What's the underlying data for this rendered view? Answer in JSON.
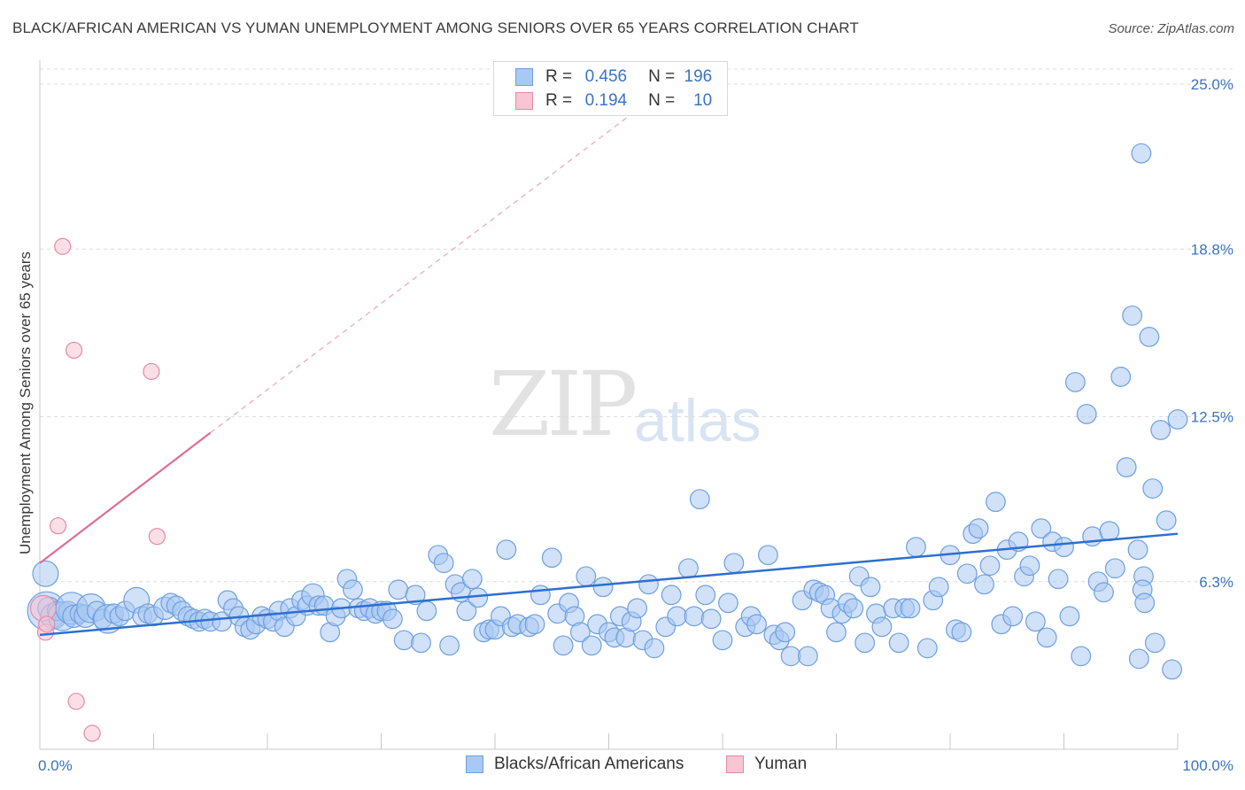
{
  "title": "BLACK/AFRICAN AMERICAN VS YUMAN UNEMPLOYMENT AMONG SENIORS OVER 65 YEARS CORRELATION CHART",
  "source": "Source: ZipAtlas.com",
  "watermark": {
    "zip": "ZIP",
    "atlas": "atlas"
  },
  "legend": {
    "r_label": "R =",
    "n_label": "N =",
    "rows": [
      {
        "r": "0.456",
        "n": "196",
        "color": "#a9c9f2",
        "border": "#6e9fe0"
      },
      {
        "r": "0.194",
        "n": "10",
        "color": "#f7c5d3",
        "border": "#e58aa6"
      }
    ]
  },
  "bottom_legend": [
    {
      "label": "Blacks/African Americans",
      "color": "#a9c9f2",
      "border": "#6e9fe0"
    },
    {
      "label": "Yuman",
      "color": "#f7c5d3",
      "border": "#e58aa6"
    }
  ],
  "chart_data": {
    "type": "scatter",
    "title": "BLACK/AFRICAN AMERICAN VS YUMAN UNEMPLOYMENT AMONG SENIORS OVER 65 YEARS CORRELATION CHART",
    "xlabel": "",
    "ylabel": "Unemployment Among Seniors over 65 years",
    "xlim": [
      0,
      100
    ],
    "ylim": [
      0,
      25.9
    ],
    "x_tick_labels": [
      "0.0%",
      "100.0%"
    ],
    "y_ticks": [
      6.3,
      12.5,
      18.8,
      25.0
    ],
    "y_tick_labels": [
      "6.3%",
      "12.5%",
      "18.8%",
      "25.0%"
    ],
    "grid": "horizontal-dashed",
    "legend_position": "top-center",
    "colors": {
      "blue": "#6e9fe0",
      "blue_fill": "#a9c9f2",
      "blue_line": "#2c6fd1",
      "pink": "#e58aa6",
      "pink_fill": "#f7c5d3",
      "pink_line": "#e06c92"
    },
    "series": [
      {
        "name": "Blacks/African Americans",
        "color": "#6e9fe0",
        "trend": {
          "x": [
            0,
            100
          ],
          "y": [
            4.3,
            8.1
          ]
        },
        "points": [
          [
            0.5,
            6.6,
            1.6
          ],
          [
            0.6,
            5.2,
            2.4
          ],
          [
            0.8,
            5.3,
            1.4
          ],
          [
            1.2,
            5.0,
            1.6
          ],
          [
            1.5,
            5.2,
            1.2
          ],
          [
            2,
            5.0,
            1.8
          ],
          [
            2.5,
            5.2,
            1.2
          ],
          [
            2.8,
            5.3,
            2.0
          ],
          [
            3,
            5.0,
            1.4
          ],
          [
            3.5,
            5.1,
            1.2
          ],
          [
            4,
            5.0,
            1.4
          ],
          [
            4.5,
            5.3,
            1.8
          ],
          [
            5,
            5.2,
            1.2
          ],
          [
            5.5,
            4.9,
            1.2
          ],
          [
            6,
            4.9,
            1.8
          ],
          [
            6.5,
            5.1,
            1.2
          ],
          [
            7,
            5.0,
            1.2
          ],
          [
            7.5,
            5.2,
            1.2
          ],
          [
            8.5,
            5.6,
            1.6
          ],
          [
            9,
            5.0,
            1.2
          ],
          [
            9.5,
            5.1,
            1.2
          ],
          [
            10,
            5.0,
            1.2
          ],
          [
            11,
            5.3,
            1.4
          ],
          [
            11.5,
            5.5,
            1.2
          ],
          [
            12,
            5.4,
            1.2
          ],
          [
            12.5,
            5.2,
            1.2
          ],
          [
            13,
            5.0,
            1.2
          ],
          [
            13.5,
            4.9,
            1.2
          ],
          [
            14,
            4.8,
            1.2
          ],
          [
            14.5,
            4.9,
            1.2
          ],
          [
            15,
            4.8,
            1.2
          ],
          [
            16,
            4.8,
            1.2
          ],
          [
            16.5,
            5.6,
            1.2
          ],
          [
            17,
            5.3,
            1.2
          ],
          [
            17.5,
            5.0,
            1.2
          ],
          [
            18,
            4.6,
            1.2
          ],
          [
            18.5,
            4.5,
            1.2
          ],
          [
            19,
            4.7,
            1.2
          ],
          [
            19.5,
            5.0,
            1.2
          ],
          [
            20,
            4.9,
            1.2
          ],
          [
            20.5,
            4.8,
            1.2
          ],
          [
            21,
            5.2,
            1.2
          ],
          [
            21.5,
            4.6,
            1.2
          ],
          [
            22,
            5.3,
            1.2
          ],
          [
            22.5,
            5.0,
            1.2
          ],
          [
            23,
            5.6,
            1.2
          ],
          [
            23.5,
            5.4,
            1.2
          ],
          [
            24,
            5.8,
            1.4
          ],
          [
            24.5,
            5.4,
            1.2
          ],
          [
            25,
            5.4,
            1.2
          ],
          [
            25.5,
            4.4,
            1.2
          ],
          [
            26,
            5.0,
            1.2
          ],
          [
            26.5,
            5.3,
            1.2
          ],
          [
            27,
            6.4,
            1.2
          ],
          [
            27.5,
            6.0,
            1.2
          ],
          [
            28,
            5.3,
            1.2
          ],
          [
            28.5,
            5.2,
            1.2
          ],
          [
            29,
            5.3,
            1.2
          ],
          [
            29.5,
            5.1,
            1.2
          ],
          [
            30,
            5.2,
            1.2
          ],
          [
            30.5,
            5.2,
            1.2
          ],
          [
            31,
            4.9,
            1.2
          ],
          [
            31.5,
            6.0,
            1.2
          ],
          [
            32,
            4.1,
            1.2
          ],
          [
            33,
            5.8,
            1.2
          ],
          [
            33.5,
            4.0,
            1.2
          ],
          [
            34,
            5.2,
            1.2
          ],
          [
            35,
            7.3,
            1.2
          ],
          [
            35.5,
            7.0,
            1.2
          ],
          [
            36,
            3.9,
            1.2
          ],
          [
            36.5,
            6.2,
            1.2
          ],
          [
            37,
            5.9,
            1.2
          ],
          [
            37.5,
            5.2,
            1.2
          ],
          [
            38,
            6.4,
            1.2
          ],
          [
            38.5,
            5.7,
            1.2
          ],
          [
            39,
            4.4,
            1.2
          ],
          [
            39.5,
            4.5,
            1.2
          ],
          [
            40,
            4.5,
            1.2
          ],
          [
            40.5,
            5.0,
            1.2
          ],
          [
            41,
            7.5,
            1.2
          ],
          [
            41.5,
            4.6,
            1.2
          ],
          [
            42,
            4.7,
            1.2
          ],
          [
            43,
            4.6,
            1.2
          ],
          [
            43.5,
            4.7,
            1.2
          ],
          [
            44,
            5.8,
            1.2
          ],
          [
            45,
            7.2,
            1.2
          ],
          [
            45.5,
            5.1,
            1.2
          ],
          [
            46,
            3.9,
            1.2
          ],
          [
            46.5,
            5.5,
            1.2
          ],
          [
            47,
            5.0,
            1.2
          ],
          [
            47.5,
            4.4,
            1.2
          ],
          [
            48,
            6.5,
            1.2
          ],
          [
            48.5,
            3.9,
            1.2
          ],
          [
            49,
            4.7,
            1.2
          ],
          [
            49.5,
            6.1,
            1.2
          ],
          [
            50,
            4.4,
            1.2
          ],
          [
            50.5,
            4.2,
            1.2
          ],
          [
            51,
            5.0,
            1.2
          ],
          [
            51.5,
            4.2,
            1.2
          ],
          [
            52,
            4.8,
            1.2
          ],
          [
            52.5,
            5.3,
            1.2
          ],
          [
            53,
            4.1,
            1.2
          ],
          [
            53.5,
            6.2,
            1.2
          ],
          [
            54,
            3.8,
            1.2
          ],
          [
            55,
            4.6,
            1.2
          ],
          [
            55.5,
            5.8,
            1.2
          ],
          [
            56,
            5.0,
            1.2
          ],
          [
            57,
            6.8,
            1.2
          ],
          [
            57.5,
            5.0,
            1.2
          ],
          [
            58,
            9.4,
            1.2
          ],
          [
            58.5,
            5.8,
            1.2
          ],
          [
            59,
            4.9,
            1.2
          ],
          [
            60,
            4.1,
            1.2
          ],
          [
            60.5,
            5.5,
            1.2
          ],
          [
            61,
            7.0,
            1.2
          ],
          [
            62,
            4.6,
            1.2
          ],
          [
            62.5,
            5.0,
            1.2
          ],
          [
            63,
            4.7,
            1.2
          ],
          [
            64,
            7.3,
            1.2
          ],
          [
            64.5,
            4.3,
            1.2
          ],
          [
            65,
            4.1,
            1.2
          ],
          [
            65.5,
            4.4,
            1.2
          ],
          [
            66,
            3.5,
            1.2
          ],
          [
            67,
            5.6,
            1.2
          ],
          [
            67.5,
            3.5,
            1.2
          ],
          [
            68,
            6.0,
            1.2
          ],
          [
            68.5,
            5.9,
            1.2
          ],
          [
            69,
            5.8,
            1.2
          ],
          [
            69.5,
            5.3,
            1.2
          ],
          [
            70,
            4.4,
            1.2
          ],
          [
            70.5,
            5.1,
            1.2
          ],
          [
            71,
            5.5,
            1.2
          ],
          [
            71.5,
            5.3,
            1.2
          ],
          [
            72,
            6.5,
            1.2
          ],
          [
            72.5,
            4.0,
            1.2
          ],
          [
            73,
            6.1,
            1.2
          ],
          [
            73.5,
            5.1,
            1.2
          ],
          [
            74,
            4.6,
            1.2
          ],
          [
            75,
            5.3,
            1.2
          ],
          [
            75.5,
            4.0,
            1.2
          ],
          [
            76,
            5.3,
            1.2
          ],
          [
            76.5,
            5.3,
            1.2
          ],
          [
            77,
            7.6,
            1.2
          ],
          [
            78,
            3.8,
            1.2
          ],
          [
            78.5,
            5.6,
            1.2
          ],
          [
            79,
            6.1,
            1.2
          ],
          [
            80,
            7.3,
            1.2
          ],
          [
            80.5,
            4.5,
            1.2
          ],
          [
            81,
            4.4,
            1.2
          ],
          [
            81.5,
            6.6,
            1.2
          ],
          [
            82,
            8.1,
            1.2
          ],
          [
            82.5,
            8.3,
            1.2
          ],
          [
            83,
            6.2,
            1.2
          ],
          [
            83.5,
            6.9,
            1.2
          ],
          [
            84,
            9.3,
            1.2
          ],
          [
            84.5,
            4.7,
            1.2
          ],
          [
            85,
            7.5,
            1.2
          ],
          [
            85.5,
            5.0,
            1.2
          ],
          [
            86,
            7.8,
            1.2
          ],
          [
            86.5,
            6.5,
            1.2
          ],
          [
            87,
            6.9,
            1.2
          ],
          [
            87.5,
            4.8,
            1.2
          ],
          [
            88,
            8.3,
            1.2
          ],
          [
            88.5,
            4.2,
            1.2
          ],
          [
            89,
            7.8,
            1.2
          ],
          [
            89.5,
            6.4,
            1.2
          ],
          [
            90,
            7.6,
            1.2
          ],
          [
            90.5,
            5.0,
            1.2
          ],
          [
            91,
            13.8,
            1.2
          ],
          [
            91.5,
            3.5,
            1.2
          ],
          [
            92,
            12.6,
            1.2
          ],
          [
            92.5,
            8.0,
            1.2
          ],
          [
            93,
            6.3,
            1.2
          ],
          [
            93.5,
            5.9,
            1.2
          ],
          [
            94,
            8.2,
            1.2
          ],
          [
            94.5,
            6.8,
            1.2
          ],
          [
            95,
            14.0,
            1.2
          ],
          [
            95.5,
            10.6,
            1.2
          ],
          [
            96,
            16.3,
            1.2
          ],
          [
            96.5,
            7.5,
            1.2
          ],
          [
            97,
            6.5,
            1.2
          ],
          [
            97.5,
            15.5,
            1.2
          ],
          [
            98,
            4.0,
            1.2
          ],
          [
            98.5,
            12.0,
            1.2
          ],
          [
            99,
            8.6,
            1.2
          ],
          [
            99.5,
            3.0,
            1.2
          ],
          [
            100,
            12.4,
            1.2
          ],
          [
            96.8,
            22.4,
            1.2
          ],
          [
            96.6,
            3.4,
            1.2
          ],
          [
            96.9,
            6.0,
            1.2
          ],
          [
            97.1,
            5.5,
            1.2
          ],
          [
            97.8,
            9.8,
            1.2
          ]
        ]
      },
      {
        "name": "Yuman",
        "color": "#e58aa6",
        "trend": {
          "x": [
            0,
            15
          ],
          "y": [
            7.0,
            11.9
          ],
          "dash_to": {
            "x": 53,
            "y": 24.2
          }
        },
        "points": [
          [
            0.3,
            5.3,
            1.6
          ],
          [
            0.5,
            4.4,
            1.0
          ],
          [
            1.6,
            8.4,
            1.0
          ],
          [
            2,
            18.9,
            1.0
          ],
          [
            3,
            15.0,
            1.0
          ],
          [
            3.2,
            1.8,
            1.0
          ],
          [
            4.6,
            0.6,
            1.0
          ],
          [
            9.8,
            14.2,
            1.0
          ],
          [
            10.3,
            8.0,
            1.0
          ],
          [
            0.6,
            4.7,
            1.0
          ]
        ]
      }
    ]
  }
}
